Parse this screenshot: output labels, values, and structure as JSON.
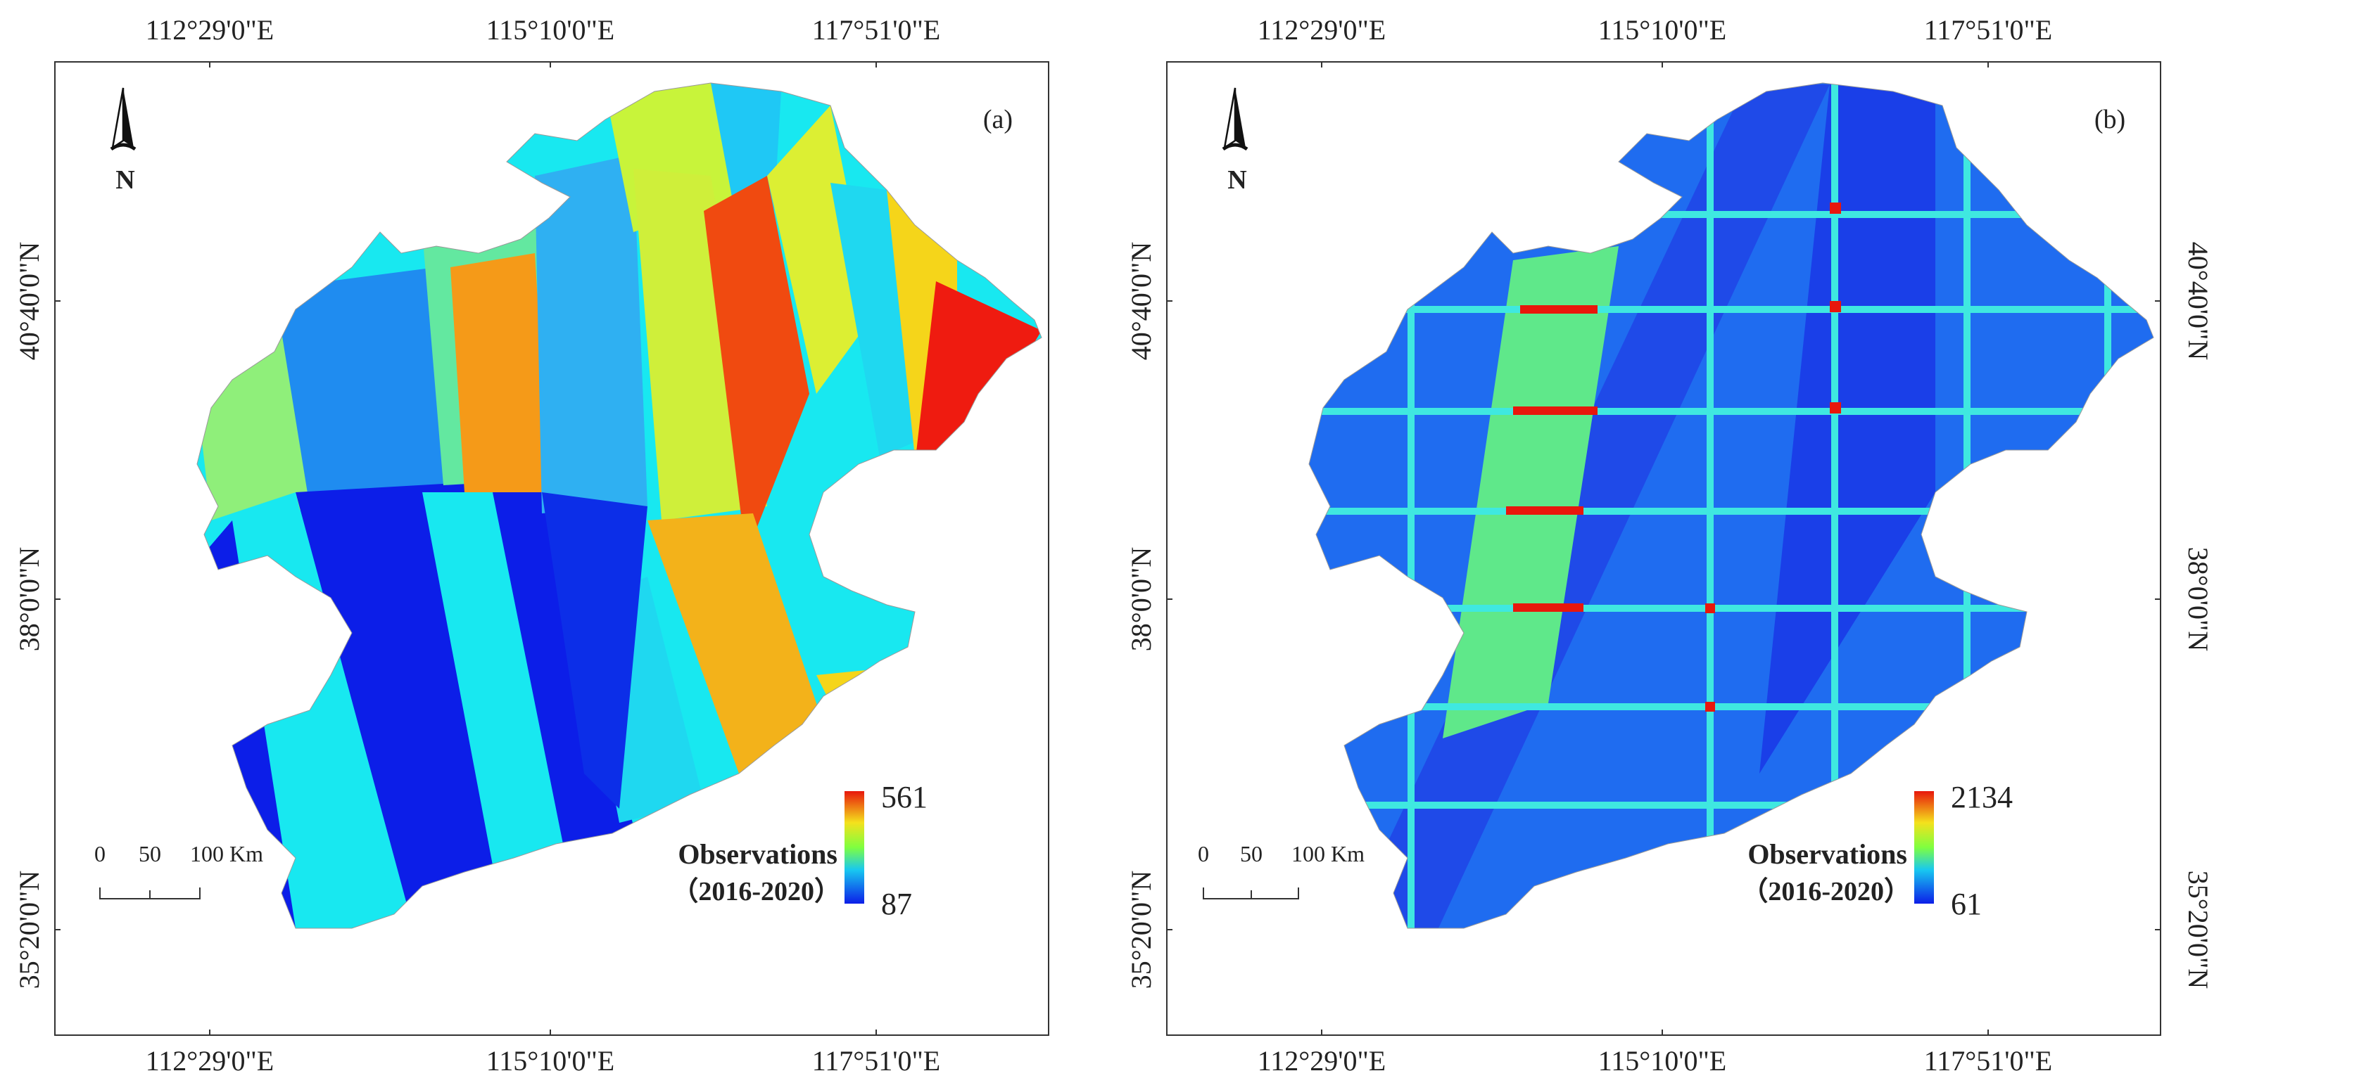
{
  "panels": [
    {
      "id": "a",
      "panel_label": "(a)",
      "north_label": "N",
      "lon_ticks": [
        "112°29'0\"E",
        "115°10'0\"E",
        "117°51'0\"E"
      ],
      "lat_ticks": [
        "40°40'0\"N",
        "38°0'0\"N",
        "35°20'0\"N"
      ],
      "scale_bar": {
        "ticks": [
          "0",
          "50",
          "100 Km"
        ]
      },
      "legend": {
        "title": "Observations",
        "period": "（2016-2020）",
        "max": "561",
        "min": "87"
      }
    },
    {
      "id": "b",
      "panel_label": "(b)",
      "north_label": "N",
      "lon_ticks": [
        "112°29'0\"E",
        "115°10'0\"E",
        "117°51'0\"E"
      ],
      "lat_ticks": [
        "40°40'0\"N",
        "38°0'0\"N",
        "35°20'0\"N"
      ],
      "scale_bar": {
        "ticks": [
          "0",
          "50",
          "100 Km"
        ]
      },
      "legend": {
        "title": "Observations",
        "period": "（2016-2020）",
        "max": "2134",
        "min": "61"
      }
    }
  ],
  "colors": {
    "ramp_high": "#e8170c",
    "ramp_mid": "#7fff3f",
    "ramp_low": "#0c1ee8"
  }
}
